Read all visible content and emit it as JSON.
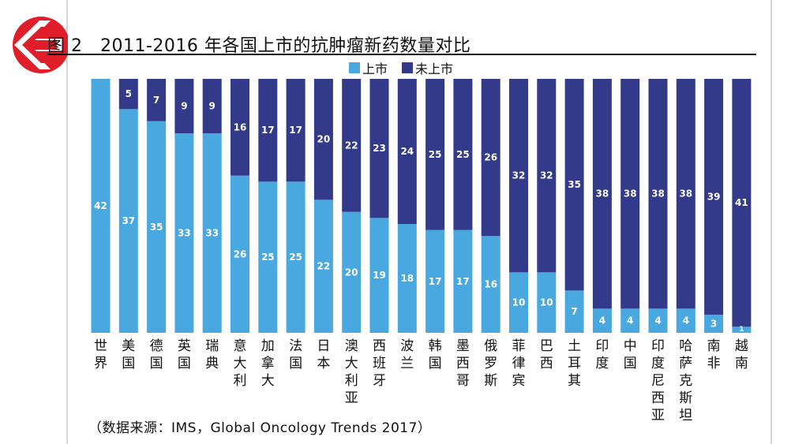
{
  "header": {
    "title": "图 2　2011-2016 年各国上市的抗肿瘤新药数量对比"
  },
  "colors": {
    "listed": "#4aa8e0",
    "unlisted": "#333a8a",
    "logo_red": "#e01e2a"
  },
  "icons": {
    "logo": "red-circle-arrow-logo-icon"
  },
  "chart_data": {
    "type": "bar",
    "stacked": true,
    "categories": [
      "世界",
      "美国",
      "德国",
      "英国",
      "瑞典",
      "意大利",
      "加拿大",
      "法国",
      "日本",
      "澳大利亚",
      "西班牙",
      "波兰",
      "韩国",
      "墨西哥",
      "俄罗斯",
      "菲律宾",
      "巴西",
      "土耳其",
      "印度",
      "中国",
      "印度尼西亚",
      "哈萨克斯坦",
      "南非",
      "越南"
    ],
    "series": [
      {
        "name": "上市",
        "values": [
          42,
          37,
          35,
          33,
          33,
          26,
          25,
          25,
          22,
          20,
          19,
          18,
          17,
          17,
          16,
          10,
          10,
          7,
          4,
          4,
          4,
          4,
          3,
          1
        ]
      },
      {
        "name": "未上市",
        "values": [
          null,
          5,
          7,
          9,
          9,
          16,
          17,
          17,
          20,
          22,
          23,
          24,
          25,
          25,
          26,
          32,
          32,
          35,
          38,
          38,
          38,
          38,
          39,
          41
        ]
      }
    ],
    "ylim": [
      0,
      42
    ],
    "legend_position": "top-center",
    "grid": false
  },
  "source": "（数据来源：IMS，Global Oncology Trends 2017）"
}
